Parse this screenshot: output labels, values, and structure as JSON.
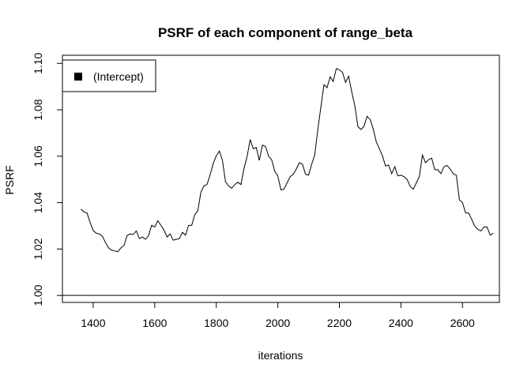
{
  "chart_data": {
    "type": "line",
    "title": "PSRF of each component of range_beta",
    "xlabel": "iterations",
    "ylabel": "PSRF",
    "xlim": [
      1300,
      2720
    ],
    "ylim": [
      0.997,
      1.1035
    ],
    "x_ticks": [
      1400,
      1600,
      1800,
      2000,
      2200,
      2400,
      2600
    ],
    "y_ticks": [
      1.0,
      1.02,
      1.04,
      1.06,
      1.08,
      1.1
    ],
    "x_tick_labels": [
      "1400",
      "1600",
      "1800",
      "2000",
      "2200",
      "2400",
      "2600"
    ],
    "y_tick_labels": [
      "1.00",
      "1.02",
      "1.04",
      "1.06",
      "1.08",
      "1.10"
    ],
    "reference_line": 1.0,
    "legend": {
      "position": "top-left",
      "entries": [
        "(Intercept)"
      ]
    },
    "series": [
      {
        "name": "(Intercept)",
        "color": "#000000",
        "x": [
          1360,
          1370,
          1380,
          1390,
          1400,
          1410,
          1420,
          1430,
          1440,
          1450,
          1460,
          1470,
          1480,
          1490,
          1500,
          1510,
          1520,
          1530,
          1540,
          1550,
          1560,
          1570,
          1580,
          1590,
          1600,
          1610,
          1620,
          1630,
          1640,
          1650,
          1660,
          1670,
          1680,
          1690,
          1700,
          1710,
          1720,
          1730,
          1740,
          1750,
          1760,
          1770,
          1780,
          1790,
          1800,
          1810,
          1820,
          1830,
          1840,
          1850,
          1860,
          1870,
          1880,
          1890,
          1900,
          1910,
          1920,
          1930,
          1940,
          1950,
          1960,
          1970,
          1980,
          1990,
          2000,
          2010,
          2020,
          2030,
          2040,
          2050,
          2060,
          2070,
          2080,
          2090,
          2100,
          2110,
          2120,
          2130,
          2140,
          2150,
          2160,
          2170,
          2180,
          2190,
          2200,
          2210,
          2220,
          2230,
          2240,
          2250,
          2260,
          2270,
          2280,
          2290,
          2300,
          2310,
          2320,
          2330,
          2340,
          2350,
          2360,
          2370,
          2380,
          2390,
          2400,
          2410,
          2420,
          2430,
          2440,
          2450,
          2460,
          2470,
          2480,
          2490,
          2500,
          2510,
          2520,
          2530,
          2540,
          2550,
          2560,
          2570,
          2580,
          2590,
          2600,
          2610,
          2620,
          2630,
          2640,
          2650,
          2660,
          2670,
          2680,
          2690,
          2700
        ],
        "values": [
          1.0372,
          1.036,
          1.0355,
          1.0315,
          1.028,
          1.0268,
          1.0265,
          1.0255,
          1.0228,
          1.0205,
          1.0195,
          1.0192,
          1.0188,
          1.0205,
          1.0215,
          1.0258,
          1.0265,
          1.0263,
          1.0278,
          1.0245,
          1.0252,
          1.0242,
          1.0258,
          1.0302,
          1.0295,
          1.0322,
          1.0302,
          1.0282,
          1.0252,
          1.0265,
          1.0238,
          1.0242,
          1.0245,
          1.0272,
          1.026,
          1.0302,
          1.0302,
          1.0348,
          1.0365,
          1.0445,
          1.0472,
          1.0478,
          1.052,
          1.0568,
          1.0602,
          1.0622,
          1.0582,
          1.049,
          1.0472,
          1.0462,
          1.0478,
          1.0488,
          1.0478,
          1.0548,
          1.0598,
          1.0672,
          1.0632,
          1.0638,
          1.0582,
          1.0648,
          1.0642,
          1.06,
          1.0585,
          1.0535,
          1.0515,
          1.0455,
          1.0458,
          1.0485,
          1.0512,
          1.0522,
          1.0545,
          1.0572,
          1.0565,
          1.0522,
          1.0518,
          1.0565,
          1.0605,
          1.0715,
          1.0812,
          1.0908,
          1.0895,
          1.0942,
          1.0922,
          1.0978,
          1.0972,
          1.0962,
          1.0918,
          1.0945,
          1.0878,
          1.0818,
          1.0728,
          1.0715,
          1.0728,
          1.0772,
          1.0758,
          1.0718,
          1.0662,
          1.0632,
          1.0602,
          1.0558,
          1.0562,
          1.0525,
          1.0555,
          1.0515,
          1.0518,
          1.0512,
          1.05,
          1.047,
          1.0458,
          1.0485,
          1.0512,
          1.0605,
          1.0572,
          1.0585,
          1.0592,
          1.0542,
          1.0542,
          1.0525,
          1.0555,
          1.056,
          1.0545,
          1.0525,
          1.0518,
          1.0412,
          1.04,
          1.0355,
          1.0355,
          1.0328,
          1.0298,
          1.0285,
          1.0278,
          1.0295,
          1.0295,
          1.026,
          1.0268
        ]
      }
    ]
  }
}
